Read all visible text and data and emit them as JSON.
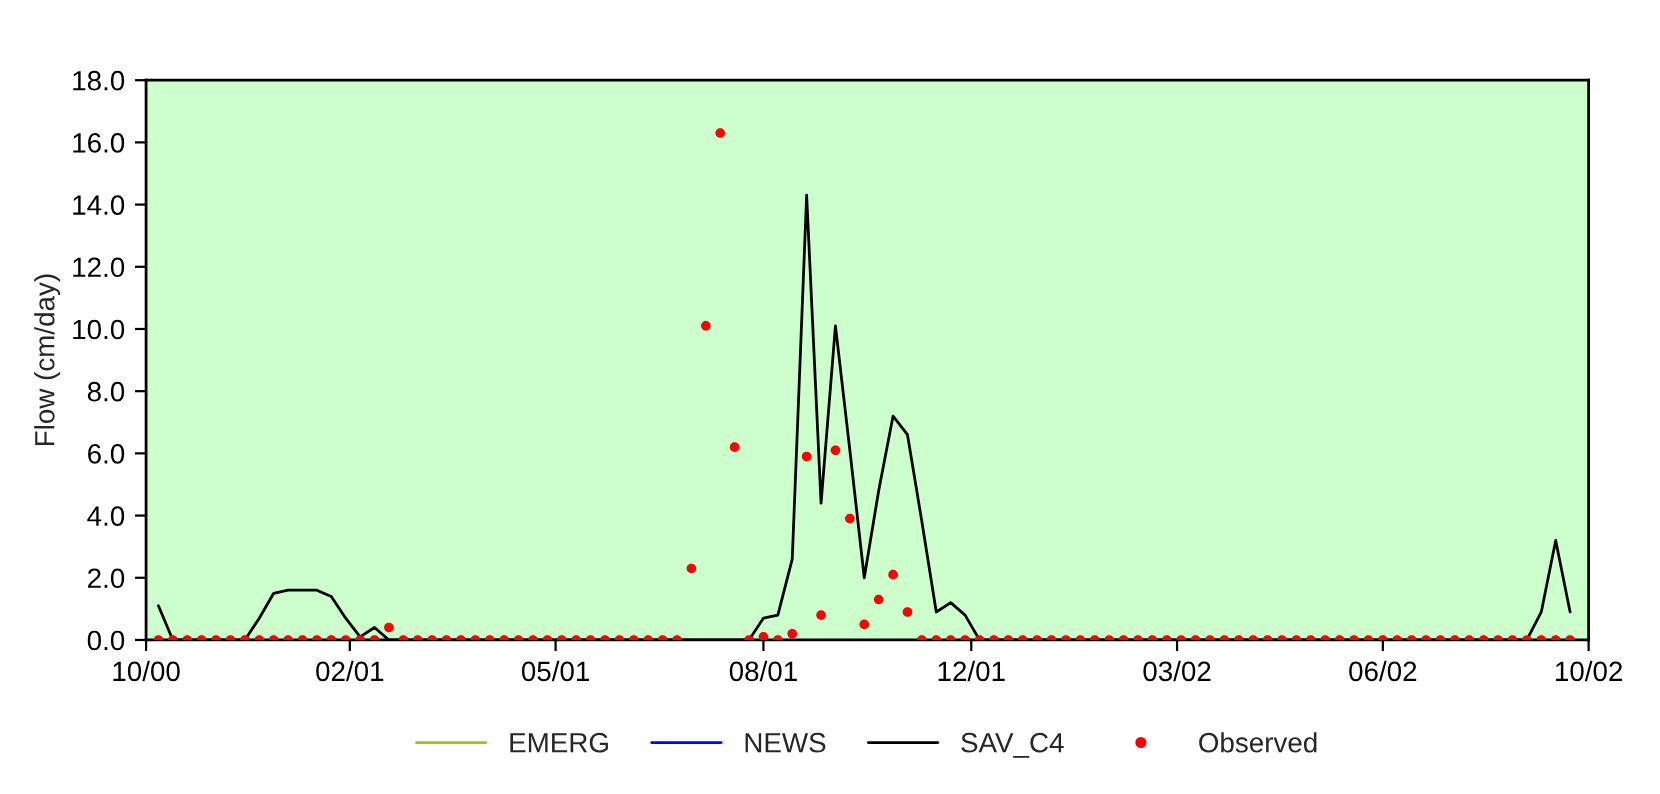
{
  "chart_data": {
    "type": "line",
    "ylabel": "Flow (cm/day)",
    "x": [
      "2000-10-07",
      "2000-10-14",
      "2000-10-21",
      "2000-10-28",
      "2000-11-04",
      "2000-11-11",
      "2000-11-18",
      "2000-11-25",
      "2000-12-02",
      "2000-12-09",
      "2000-12-16",
      "2000-12-23",
      "2000-12-30",
      "2001-01-06",
      "2001-01-13",
      "2001-01-20",
      "2001-01-27",
      "2001-02-03",
      "2001-02-10",
      "2001-02-17",
      "2001-02-24",
      "2001-03-03",
      "2001-03-10",
      "2001-03-17",
      "2001-03-24",
      "2001-03-31",
      "2001-04-07",
      "2001-04-14",
      "2001-04-21",
      "2001-04-28",
      "2001-05-05",
      "2001-05-12",
      "2001-05-19",
      "2001-05-26",
      "2001-06-02",
      "2001-06-09",
      "2001-06-16",
      "2001-06-23",
      "2001-06-30",
      "2001-07-07",
      "2001-07-14",
      "2001-07-21",
      "2001-07-28",
      "2001-08-04",
      "2001-08-11",
      "2001-08-18",
      "2001-08-25",
      "2001-09-01",
      "2001-09-08",
      "2001-09-15",
      "2001-09-22",
      "2001-09-29",
      "2001-10-06",
      "2001-10-13",
      "2001-10-20",
      "2001-10-27",
      "2001-11-03",
      "2001-11-10",
      "2001-11-17",
      "2001-11-24",
      "2001-12-01",
      "2001-12-08",
      "2001-12-15",
      "2001-12-22",
      "2001-12-29",
      "2002-01-05",
      "2002-01-12",
      "2002-01-19",
      "2002-01-26",
      "2002-02-02",
      "2002-02-09",
      "2002-02-16",
      "2002-02-23",
      "2002-03-02",
      "2002-03-09",
      "2002-03-16",
      "2002-03-23",
      "2002-03-30",
      "2002-04-06",
      "2002-04-13",
      "2002-04-20",
      "2002-04-27",
      "2002-05-04",
      "2002-05-11",
      "2002-05-18",
      "2002-05-25",
      "2002-06-01",
      "2002-06-08",
      "2002-06-15",
      "2002-06-22",
      "2002-06-29",
      "2002-07-06",
      "2002-07-13",
      "2002-07-20",
      "2002-07-27",
      "2002-08-03",
      "2002-08-10",
      "2002-08-17",
      "2002-08-24"
    ],
    "series": [
      {
        "name": "EMERG",
        "color": "#99cc00",
        "values": [
          null,
          null,
          null,
          null,
          null,
          null,
          null,
          null,
          null,
          null,
          null,
          null,
          null,
          null,
          null,
          null,
          null,
          null,
          null,
          null,
          null,
          null,
          null,
          null,
          null,
          null,
          null,
          null,
          null,
          null,
          null,
          null,
          null,
          null,
          null,
          null,
          null,
          null,
          null,
          null,
          null,
          null,
          null,
          null,
          null,
          null,
          null,
          null,
          null,
          null,
          null,
          null,
          null,
          null,
          null,
          null,
          null,
          null,
          null,
          null,
          null,
          null,
          null,
          null,
          null,
          null,
          null,
          null,
          null,
          null,
          null,
          null,
          null,
          null,
          null,
          null,
          null,
          null,
          null,
          null,
          null,
          null,
          null,
          null,
          null,
          null,
          null,
          null,
          null,
          null,
          null,
          null,
          null,
          null,
          null,
          null,
          null,
          null,
          null
        ]
      },
      {
        "name": "NEWS",
        "color": "#0000ff",
        "values": [
          null,
          null,
          null,
          null,
          null,
          null,
          null,
          null,
          null,
          null,
          null,
          null,
          null,
          null,
          null,
          null,
          null,
          null,
          null,
          null,
          null,
          null,
          null,
          null,
          null,
          null,
          null,
          null,
          null,
          null,
          null,
          null,
          null,
          null,
          null,
          null,
          null,
          null,
          null,
          null,
          null,
          null,
          null,
          null,
          null,
          null,
          null,
          null,
          null,
          null,
          null,
          null,
          null,
          null,
          null,
          null,
          null,
          null,
          null,
          null,
          null,
          null,
          null,
          null,
          null,
          null,
          null,
          null,
          null,
          null,
          null,
          null,
          null,
          null,
          null,
          null,
          null,
          null,
          null,
          null,
          null,
          null,
          null,
          null,
          null,
          null,
          null,
          null,
          null,
          null,
          null,
          null,
          null,
          null,
          null,
          null,
          null,
          null,
          null
        ]
      },
      {
        "name": "SAV_C4",
        "color": "#000000",
        "values": [
          1.1,
          0,
          0,
          0,
          0,
          0,
          0,
          0.7,
          1.5,
          1.6,
          1.6,
          1.6,
          1.4,
          0.7,
          0.1,
          0.4,
          0,
          0,
          0,
          0,
          0,
          0,
          0,
          0,
          0,
          0,
          0,
          0,
          0,
          0,
          0,
          0,
          0,
          0,
          0,
          0,
          0,
          0,
          0,
          0,
          0,
          0,
          0.7,
          0.8,
          2.6,
          14.3,
          4.4,
          10.1,
          6.1,
          2.0,
          4.8,
          7.2,
          6.6,
          3.8,
          0.9,
          1.2,
          0.8,
          0,
          0,
          0,
          0,
          0,
          0,
          0,
          0,
          0,
          0,
          0,
          0,
          0,
          0,
          0,
          0,
          0,
          0,
          0,
          0,
          0,
          0,
          0,
          0,
          0,
          0,
          0,
          0,
          0,
          0,
          0,
          0,
          0,
          0,
          0,
          0,
          0,
          0,
          0,
          0.9,
          3.2,
          0.9
        ]
      },
      {
        "name": "Observed",
        "color": "#ff0000",
        "type": "scatter",
        "marker": "circle",
        "values": [
          0,
          0,
          0,
          0,
          0,
          0,
          0,
          0,
          0,
          0,
          0,
          0,
          0,
          0,
          0,
          0,
          0.4,
          0,
          0,
          0,
          0,
          0,
          0,
          0,
          0,
          0,
          0,
          0,
          0,
          0,
          0,
          0,
          0,
          0,
          0,
          0,
          0,
          2.3,
          10.1,
          16.3,
          6.2,
          0,
          0.1,
          0,
          0.2,
          5.9,
          0.8,
          6.1,
          3.9,
          0.5,
          1.3,
          2.1,
          0.9,
          0,
          0,
          0,
          0,
          0,
          0,
          0,
          0,
          0,
          0,
          0,
          0,
          0,
          0,
          0,
          0,
          0,
          0,
          0,
          0,
          0,
          0,
          0,
          0,
          0,
          0,
          0,
          0,
          0,
          0,
          0,
          0,
          0,
          0,
          0,
          0,
          0,
          0,
          0,
          0,
          0,
          0,
          0,
          0,
          0,
          0
        ]
      }
    ],
    "xlim": [
      "2000-10-01",
      "2002-09-02"
    ],
    "xticks": [
      {
        "value": "2000-10-01",
        "label": "10/00"
      },
      {
        "value": "2001-01-08",
        "label": "02/01"
      },
      {
        "value": "2001-04-18",
        "label": "05/01"
      },
      {
        "value": "2001-07-28",
        "label": "08/01"
      },
      {
        "value": "2001-11-06",
        "label": "12/01"
      },
      {
        "value": "2002-02-14",
        "label": "03/02"
      },
      {
        "value": "2002-05-25",
        "label": "06/02"
      },
      {
        "value": "2002-09-02",
        "label": "10/02"
      }
    ],
    "ylim": [
      0,
      18
    ],
    "yticks": [
      {
        "value": 0,
        "label": "0.0"
      },
      {
        "value": 2,
        "label": "2.0"
      },
      {
        "value": 4,
        "label": "4.0"
      },
      {
        "value": 6,
        "label": "6.0"
      },
      {
        "value": 8,
        "label": "8.0"
      },
      {
        "value": 10,
        "label": "10.0"
      },
      {
        "value": 12,
        "label": "12.0"
      },
      {
        "value": 14,
        "label": "14.0"
      },
      {
        "value": 16,
        "label": "16.0"
      },
      {
        "value": 18,
        "label": "18.0"
      }
    ],
    "grid": false,
    "legend": "bottom"
  }
}
